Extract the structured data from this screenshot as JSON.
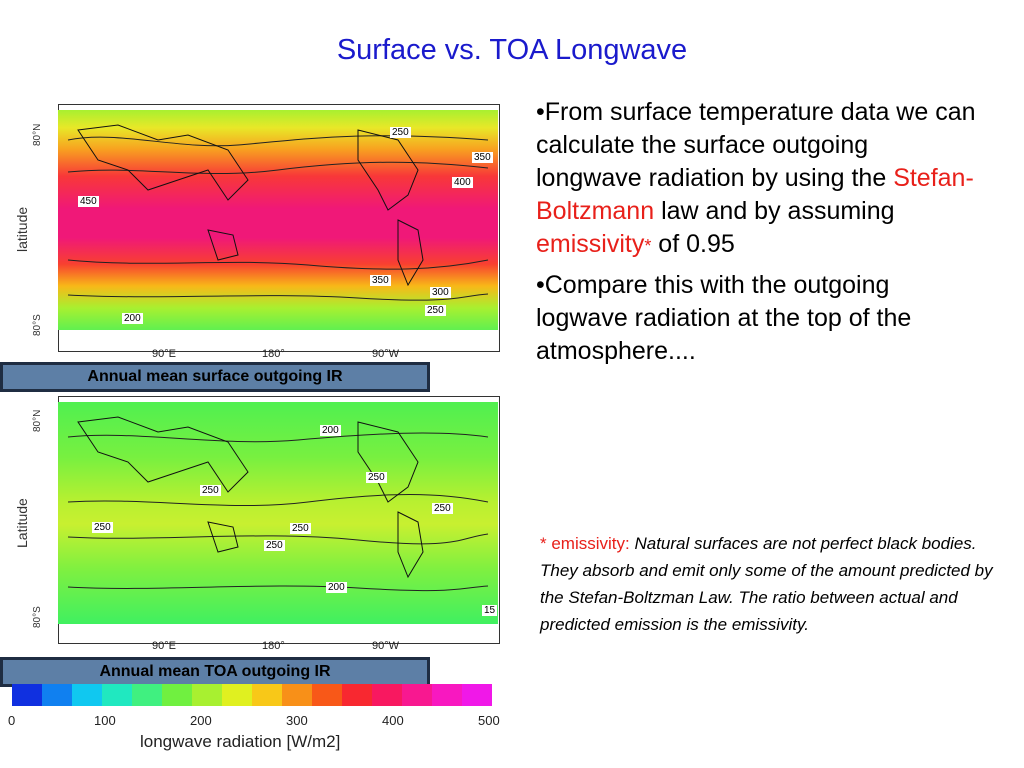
{
  "slide": {
    "title": "Surface vs. TOA Longwave"
  },
  "top_map": {
    "ylabel": "latitude",
    "lat_labels": [
      "80°N",
      "80°S"
    ],
    "lon_labels": [
      "90°E",
      "180°",
      "90°W"
    ],
    "caption": "Annual mean surface outgoing IR",
    "contours": [
      "250",
      "350",
      "400",
      "450",
      "350",
      "300",
      "250",
      "200"
    ]
  },
  "bottom_map": {
    "ylabel": "Latitude",
    "lat_labels": [
      "80°N",
      "80°S"
    ],
    "lon_labels": [
      "90°E",
      "180°",
      "90°W"
    ],
    "caption": "Annual mean TOA outgoing IR",
    "contours": [
      "200",
      "250",
      "250",
      "250",
      "250",
      "250",
      "250",
      "200",
      "15"
    ]
  },
  "bullets": {
    "b1_a": "•From surface temperature data we can calculate the surface outgoing longwave radiation by using the ",
    "b1_term1": "Stefan-Boltzmann",
    "b1_b": " law and by assuming ",
    "b1_term2": "emissivity",
    "b1_star": "*",
    "b1_c": " of 0.95",
    "b2": "•Compare this with the outgoing logwave radiation at the top of the atmosphere...."
  },
  "footnote": {
    "label": "* emissivity:",
    "text": " Natural surfaces are not perfect black bodies. They absorb and emit only some of the amount predicted by the Stefan-Boltzman Law. The ratio between actual and predicted emission is the emissivity."
  },
  "colorbar": {
    "ticks": [
      "0",
      "100",
      "200",
      "300",
      "400",
      "500"
    ],
    "label": "longwave radiation [W/m2]",
    "colors": [
      "#1030e0",
      "#1080f0",
      "#10c8f0",
      "#20e8c0",
      "#40f080",
      "#70f040",
      "#a8f030",
      "#e0f020",
      "#f8c818",
      "#f89018",
      "#f85818",
      "#f82830",
      "#f81860",
      "#f81890",
      "#f818c0",
      "#f018e8"
    ]
  }
}
